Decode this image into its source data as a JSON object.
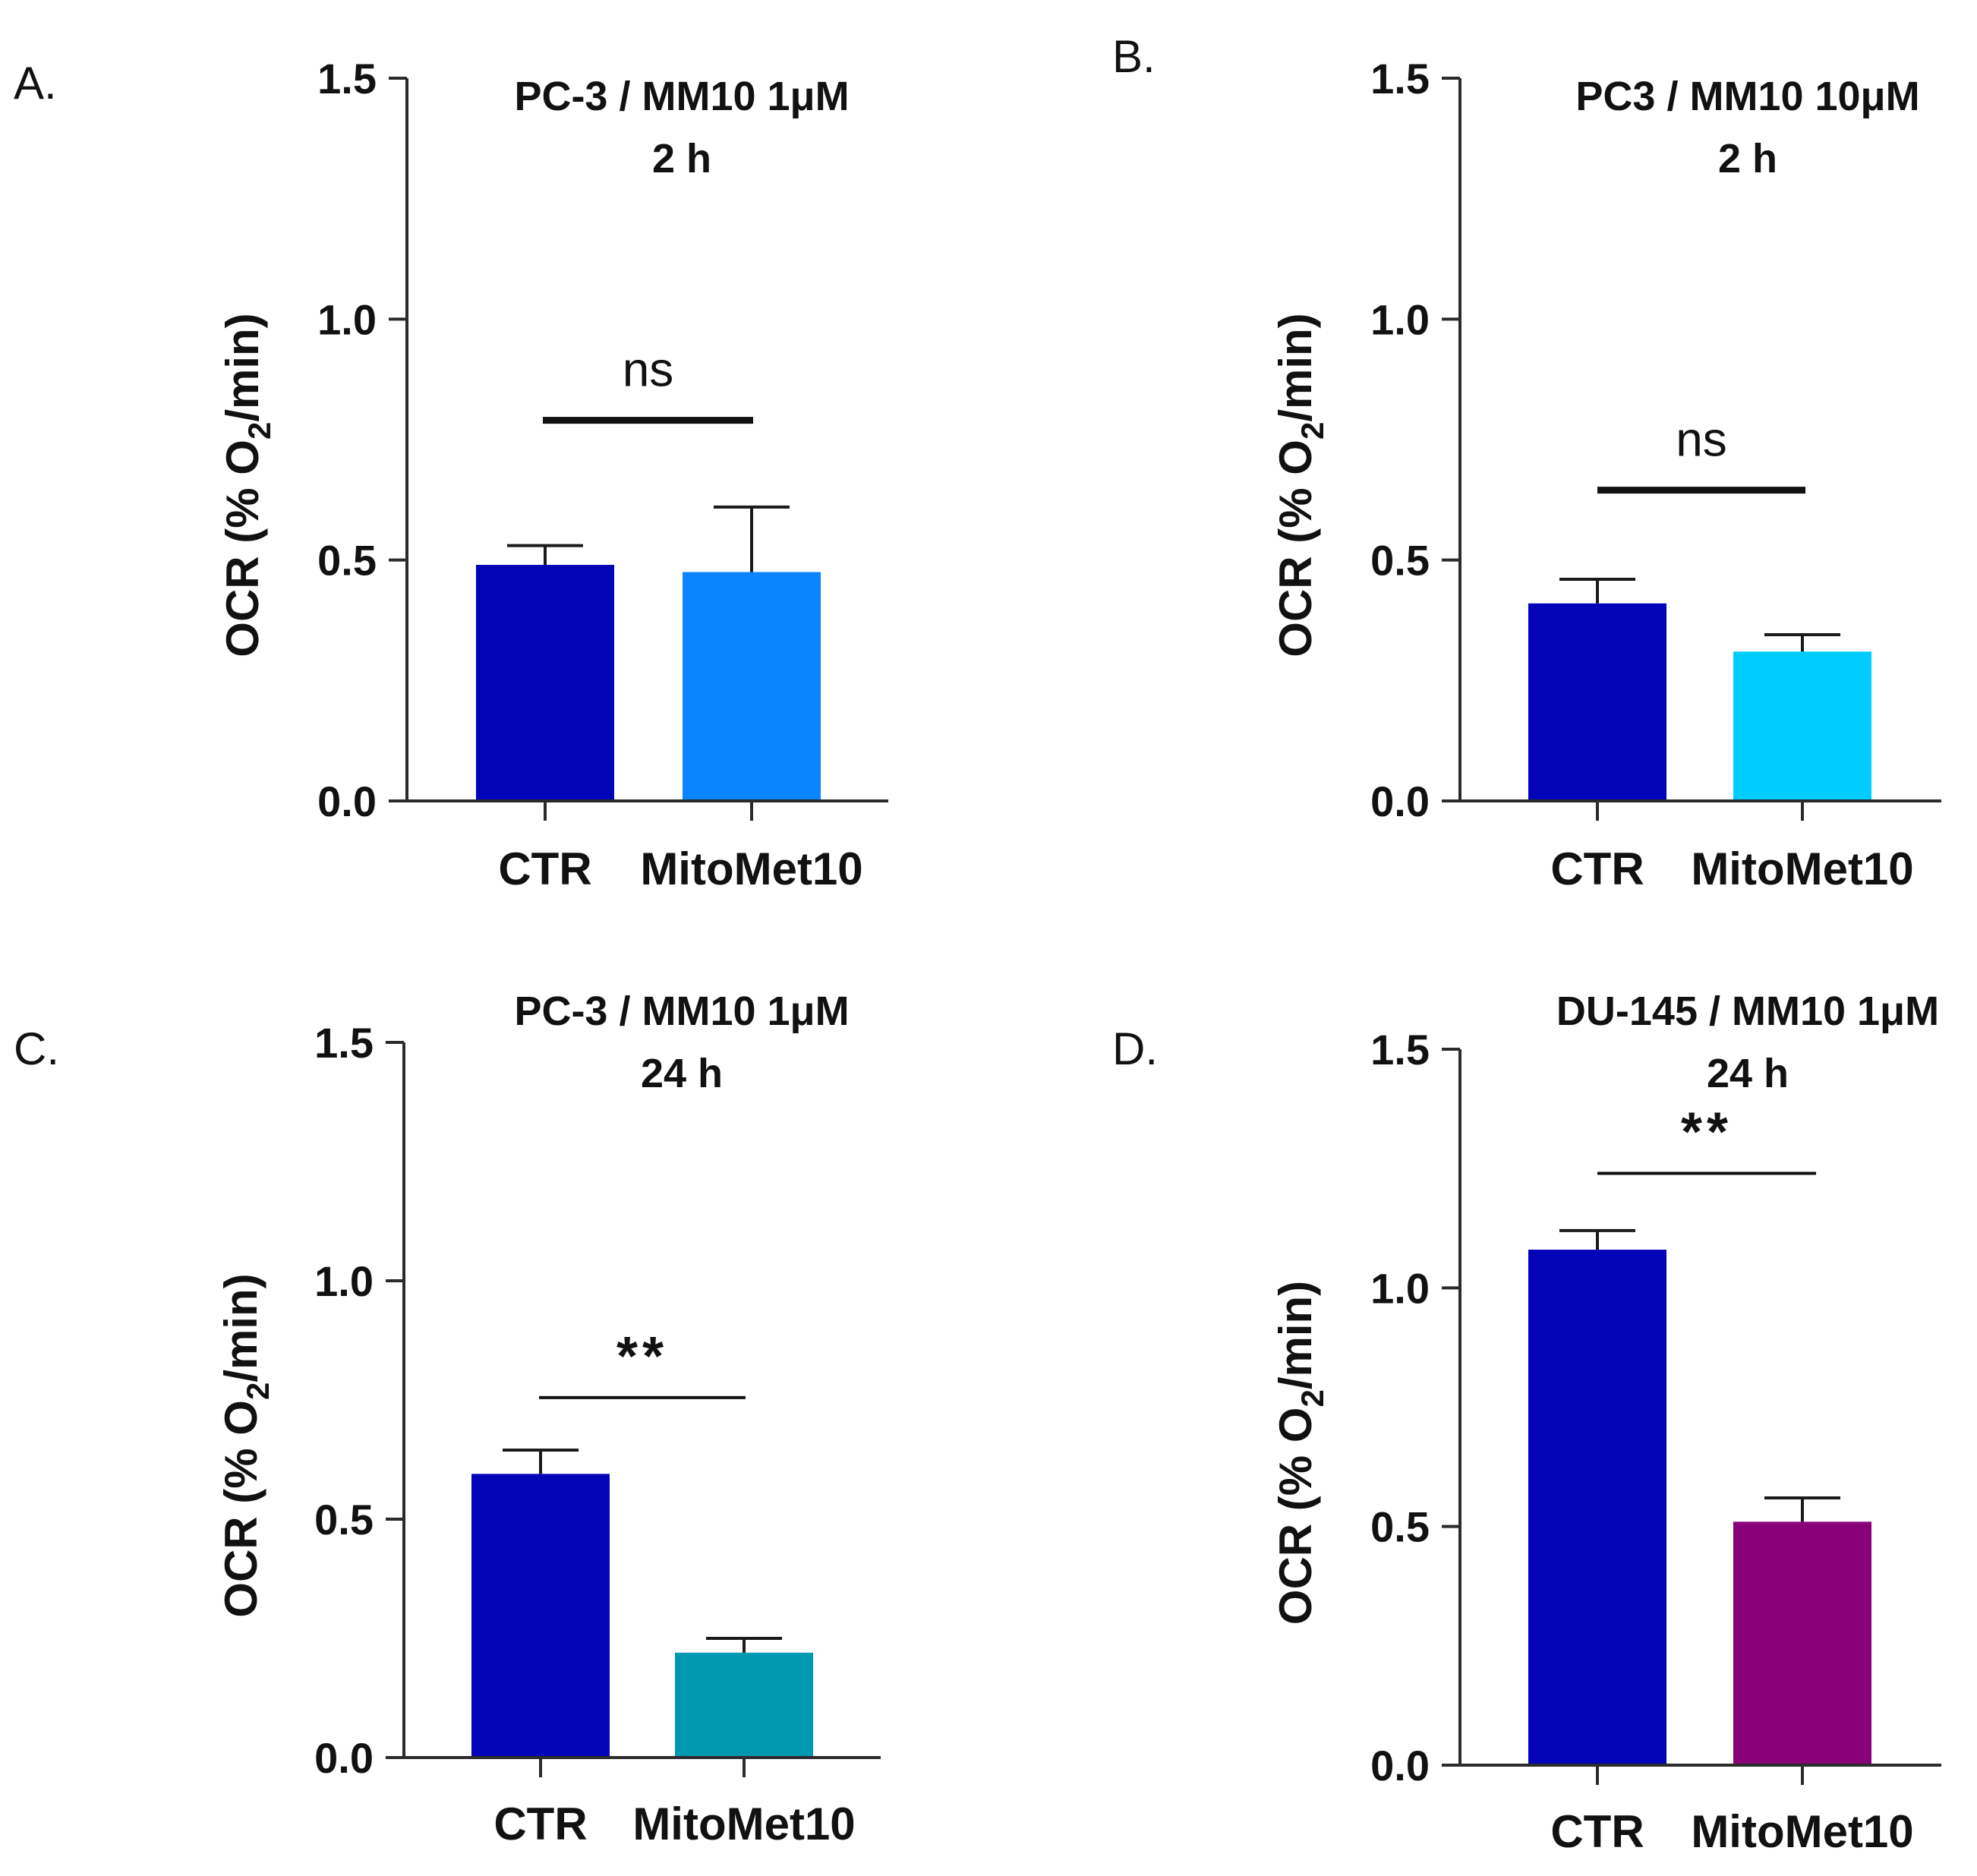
{
  "chart_data": [
    {
      "panel": "A.",
      "type": "bar",
      "title": "PC-3 / MM10 1μM",
      "subtitle": "2 h",
      "ylabel_prefix": "OCR (% O",
      "ylabel_sub": "2",
      "ylabel_suffix": "/min)",
      "ylim": [
        0,
        1.5
      ],
      "yticks": [
        "0.0",
        "0.5",
        "1.0",
        "1.5"
      ],
      "categories": [
        "CTR",
        "MitoMet10"
      ],
      "values": [
        0.49,
        0.475
      ],
      "errors": [
        0.04,
        0.135
      ],
      "colors": [
        "#0303b8",
        "#0a84ff"
      ],
      "significance": {
        "label": "ns",
        "y": 0.79
      }
    },
    {
      "panel": "B.",
      "type": "bar",
      "title": "PC3 / MM10 10μM",
      "subtitle": "2 h",
      "ylabel_prefix": "OCR (% O",
      "ylabel_sub": "2",
      "ylabel_suffix": "/min)",
      "ylim": [
        0,
        1.5
      ],
      "yticks": [
        "0.0",
        "0.5",
        "1.0",
        "1.5"
      ],
      "categories": [
        "CTR",
        "MitoMet10"
      ],
      "values": [
        0.41,
        0.31
      ],
      "errors": [
        0.05,
        0.035
      ],
      "colors": [
        "#0303b8",
        "#00ccff"
      ],
      "significance": {
        "label": "ns",
        "y": 0.645
      }
    },
    {
      "panel": "C.",
      "type": "bar",
      "title": "PC-3 / MM10 1μM",
      "subtitle": "24 h",
      "ylabel_prefix": "OCR (% O",
      "ylabel_sub": "2",
      "ylabel_suffix": "/min)",
      "ylim": [
        0,
        1.5
      ],
      "yticks": [
        "0.0",
        "0.5",
        "1.0",
        "1.5"
      ],
      "categories": [
        "CTR",
        "MitoMet10"
      ],
      "values": [
        0.595,
        0.22
      ],
      "errors": [
        0.05,
        0.03
      ],
      "colors": [
        "#0303b8",
        "#0099b0"
      ],
      "significance": {
        "label": "**",
        "y": 0.755
      }
    },
    {
      "panel": "D.",
      "type": "bar",
      "title": "DU-145 / MM10 1μM",
      "subtitle": "24 h",
      "ylabel_prefix": "OCR (% O",
      "ylabel_sub": "2",
      "ylabel_suffix": "/min)",
      "ylim": [
        0,
        1.5
      ],
      "yticks": [
        "0.0",
        "0.5",
        "1.0",
        "1.5"
      ],
      "categories": [
        "CTR",
        "MitoMet10"
      ],
      "values": [
        1.08,
        0.51
      ],
      "errors": [
        0.04,
        0.05
      ],
      "colors": [
        "#0303b8",
        "#8a0078"
      ],
      "significance": {
        "label": "**",
        "y": 1.24
      }
    }
  ]
}
